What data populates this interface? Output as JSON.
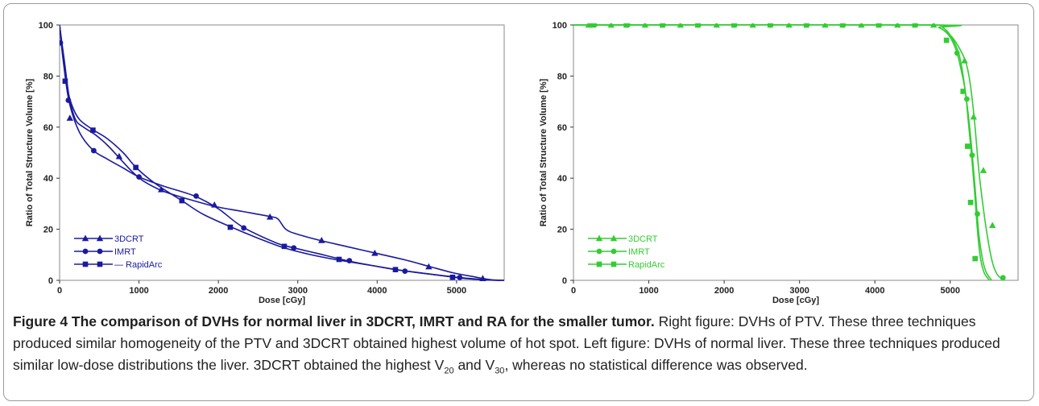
{
  "figure": {
    "caption_title": "Figure 4 The comparison of DVHs for normal liver in 3DCRT, IMRT and RA for the smaller tumor.",
    "caption_text_1": " Right figure: DVHs of PTV. These three techniques produced similar homogeneity of the PTV and 3DCRT obtained highest volume of hot spot. Left figure: DVHs of normal liver. These three techniques produced similar low-dose distributions the liver. 3DCRT obtained the highest V",
    "caption_sub_1": "20",
    "caption_text_2": " and V",
    "caption_sub_2": "30",
    "caption_text_3": ", whereas no statistical difference was observed."
  },
  "chart_data": [
    {
      "id": "left",
      "type": "line",
      "xlabel": "Dose [cGy]",
      "ylabel": "Ratio of Total Structure Volume [%]",
      "xlim": [
        0,
        5600
      ],
      "ylim": [
        0,
        100
      ],
      "xticks": [
        0,
        1000,
        2000,
        3000,
        4000,
        5000
      ],
      "yticks": [
        0,
        20,
        40,
        60,
        80,
        100
      ],
      "grid": false,
      "legend_position": "bottom-left",
      "color": "#1a1aa0",
      "series": [
        {
          "name": "3DCRT",
          "marker": "triangle",
          "x": [
            0,
            20,
            60,
            120,
            200,
            300,
            450,
            600,
            750,
            900,
            1050,
            1300,
            1600,
            1950,
            2300,
            2650,
            2750,
            2850,
            3000,
            3300,
            3650,
            4000,
            4350,
            4650,
            4950,
            5200,
            5350,
            5450,
            5600
          ],
          "y": [
            100,
            95,
            86,
            72,
            63,
            60,
            57,
            53,
            48,
            43,
            39,
            35,
            32,
            29,
            27,
            25,
            24,
            20,
            18,
            15.5,
            13,
            10.5,
            8,
            5.5,
            3,
            1.5,
            0.6,
            0.2,
            0
          ]
        },
        {
          "name": "IMRT",
          "marker": "circle",
          "x": [
            0,
            20,
            50,
            120,
            250,
            420,
            600,
            800,
            1000,
            1300,
            1700,
            2000,
            2300,
            2700,
            2850,
            2950,
            3250,
            3650,
            3900,
            4350,
            4700,
            5000,
            5250,
            5450,
            5600
          ],
          "y": [
            100,
            93,
            85,
            70,
            58,
            51,
            47.5,
            44,
            40.5,
            37,
            33,
            28,
            21,
            15,
            13.5,
            12.7,
            10.5,
            7.5,
            6,
            3.7,
            2.3,
            1.2,
            0.5,
            0.1,
            0
          ]
        },
        {
          "name": "RapidArc",
          "marker": "square",
          "x": [
            0,
            30,
            80,
            150,
            250,
            420,
            600,
            800,
            970,
            1200,
            1550,
            1800,
            2150,
            2500,
            2800,
            3100,
            3500,
            3900,
            4230,
            4650,
            4950,
            5150,
            5350,
            5550
          ],
          "y": [
            100,
            92,
            78,
            69,
            63,
            59,
            55.5,
            50,
            44,
            38,
            31,
            26,
            21,
            16.5,
            13,
            10.5,
            8,
            6,
            4.2,
            2.5,
            1.3,
            0.6,
            0.2,
            0
          ]
        }
      ],
      "markers": {
        "3DCRT": [
          [
            130,
            63.5
          ],
          [
            750,
            48.5
          ],
          [
            1280,
            35.5
          ],
          [
            1950,
            29.5
          ],
          [
            2650,
            24.8
          ],
          [
            3300,
            15.6
          ],
          [
            3970,
            10.6
          ],
          [
            4650,
            5.3
          ],
          [
            5330,
            0.7
          ]
        ],
        "IMRT": [
          [
            10,
            93
          ],
          [
            110,
            70.5
          ],
          [
            430,
            50.8
          ],
          [
            1000,
            40.5
          ],
          [
            1720,
            33
          ],
          [
            2320,
            20.5
          ],
          [
            2950,
            12.7
          ],
          [
            3650,
            7.7
          ],
          [
            4350,
            3.6
          ],
          [
            5040,
            1.1
          ]
        ],
        "RapidArc": [
          [
            70,
            78
          ],
          [
            420,
            58.8
          ],
          [
            960,
            44.2
          ],
          [
            1540,
            31.2
          ],
          [
            2150,
            20.8
          ],
          [
            2830,
            13.3
          ],
          [
            3520,
            8.2
          ],
          [
            4230,
            4.2
          ],
          [
            4950,
            1.2
          ]
        ]
      },
      "legend_labels": [
        "3DCRT",
        "IMRT",
        "— RapidArc"
      ],
      "tick_labels_x": [
        "0",
        "1000",
        "2000",
        "3000",
        "4000",
        "5000"
      ],
      "tick_labels_y": [
        "0",
        "20",
        "40",
        "60",
        "80",
        "100"
      ]
    },
    {
      "id": "right",
      "type": "line",
      "xlabel": "Dose [cGy]",
      "ylabel": "Ratio of Total Structure Volume [%]",
      "xlim": [
        0,
        5900
      ],
      "ylim": [
        0,
        100
      ],
      "xticks": [
        0,
        1000,
        2000,
        3000,
        4000,
        5000
      ],
      "yticks": [
        0,
        20,
        40,
        60,
        80,
        100
      ],
      "grid": false,
      "legend_position": "bottom-left",
      "color": "#33cc33",
      "series": [
        {
          "name": "3DCRT",
          "marker": "triangle",
          "x": [
            0,
            4700,
            4850,
            5000,
            5100,
            5200,
            5260,
            5320,
            5380,
            5440,
            5500,
            5560,
            5620,
            5700
          ],
          "y": [
            100,
            100,
            99,
            96,
            92,
            86,
            78,
            63,
            43,
            28,
            16,
            7,
            2.5,
            0
          ]
        },
        {
          "name": "IMRT",
          "marker": "circle",
          "x": [
            0,
            4750,
            4900,
            5000,
            5100,
            5150,
            5200,
            5250,
            5290,
            5330,
            5380,
            5430,
            5480,
            5550
          ],
          "y": [
            100,
            100,
            99,
            96,
            90,
            84,
            74,
            62,
            50,
            36,
            18,
            8,
            3,
            0
          ]
        },
        {
          "name": "RapidArc",
          "marker": "square",
          "x": [
            0,
            4700,
            4850,
            4980,
            5080,
            5140,
            5200,
            5240,
            5280,
            5320,
            5360,
            5400,
            5450,
            5520
          ],
          "y": [
            100,
            100,
            99,
            96,
            90,
            83,
            74,
            62,
            50,
            36,
            20,
            9,
            3,
            0
          ]
        }
      ],
      "markers": {
        "3DCRT": [
          [
            200,
            100
          ],
          [
            500,
            100
          ],
          [
            950,
            100
          ],
          [
            1420,
            100
          ],
          [
            1900,
            100
          ],
          [
            2380,
            100
          ],
          [
            2860,
            100
          ],
          [
            3340,
            100
          ],
          [
            3820,
            100
          ],
          [
            4300,
            100
          ],
          [
            4780,
            100
          ],
          [
            5190,
            86
          ],
          [
            5310,
            64
          ],
          [
            5440,
            43
          ],
          [
            5560,
            21.5
          ]
        ],
        "IMRT": [
          [
            280,
            100
          ],
          [
            720,
            100
          ],
          [
            1190,
            100
          ],
          [
            1660,
            100
          ],
          [
            2140,
            100
          ],
          [
            2620,
            100
          ],
          [
            3100,
            100
          ],
          [
            3580,
            100
          ],
          [
            4060,
            100
          ],
          [
            4540,
            100
          ],
          [
            5090,
            89
          ],
          [
            5220,
            71
          ],
          [
            5290,
            49
          ],
          [
            5360,
            26
          ],
          [
            5700,
            1
          ]
        ],
        "RapidArc": [
          [
            240,
            100
          ],
          [
            700,
            100
          ],
          [
            1180,
            100
          ],
          [
            1650,
            100
          ],
          [
            2130,
            100
          ],
          [
            2610,
            100
          ],
          [
            3090,
            100
          ],
          [
            3570,
            100
          ],
          [
            4050,
            100
          ],
          [
            4530,
            100
          ],
          [
            4950,
            94
          ],
          [
            5170,
            74
          ],
          [
            5230,
            52.5
          ],
          [
            5270,
            30.5
          ],
          [
            5330,
            8.5
          ]
        ]
      },
      "legend_labels": [
        "3DCRT",
        "IMRT",
        "RapidArc"
      ],
      "tick_labels_x": [
        "0",
        "1000",
        "2000",
        "3000",
        "4000",
        "5000"
      ],
      "tick_labels_y": [
        "0",
        "20",
        "40",
        "60",
        "80",
        "100"
      ]
    }
  ]
}
